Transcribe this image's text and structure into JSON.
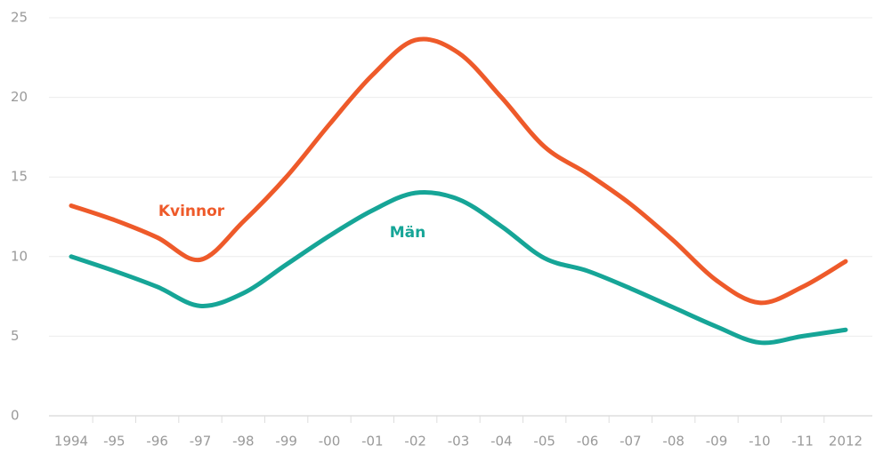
{
  "chart_data": {
    "type": "line",
    "categories": [
      "1994",
      "-95",
      "-96",
      "-97",
      "-98",
      "-99",
      "-00",
      "-01",
      "-02",
      "-03",
      "-04",
      "-05",
      "-06",
      "-07",
      "-08",
      "-09",
      "-10",
      "-11",
      "2012"
    ],
    "series": [
      {
        "name": "Kvinnor",
        "color": "#ee5a2a",
        "values": [
          13.2,
          12.3,
          11.2,
          9.8,
          12.2,
          15.0,
          18.3,
          21.4,
          23.6,
          22.8,
          20.0,
          16.9,
          15.2,
          13.3,
          11.0,
          8.5,
          7.1,
          8.1,
          9.7
        ]
      },
      {
        "name": "Män",
        "color": "#16a597",
        "values": [
          10.0,
          9.1,
          8.1,
          6.9,
          7.7,
          9.5,
          11.3,
          12.9,
          14.0,
          13.6,
          11.9,
          9.9,
          9.1,
          8.0,
          6.8,
          5.6,
          4.6,
          5.0,
          5.4
        ]
      }
    ],
    "ylim": [
      0,
      25
    ],
    "yticks": [
      0,
      5,
      10,
      15,
      20,
      25
    ],
    "grid": true
  }
}
